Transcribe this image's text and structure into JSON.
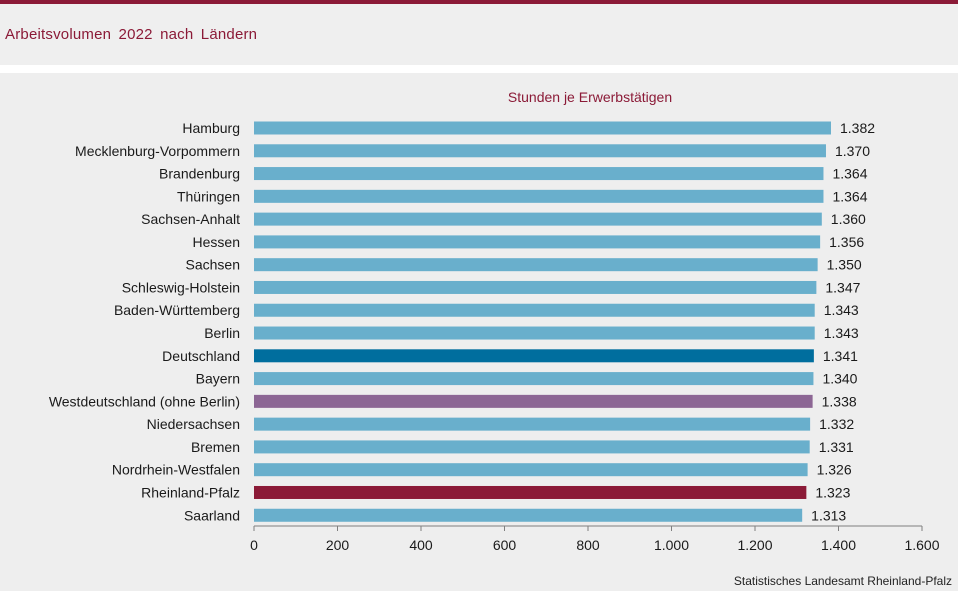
{
  "header": {
    "title": "Arbeitsvolumen  2022  nach Ländern"
  },
  "footer": {
    "source": "Statistisches Landesamt Rheinland-Pfalz"
  },
  "colors": {
    "brand": "#8b1a37",
    "bar_default": "#69afcc",
    "bar_germany": "#006e9e",
    "bar_west": "#8c6694",
    "bar_rlp": "#8b1a37",
    "text": "#1a1a1a"
  },
  "chart_data": {
    "type": "bar",
    "orientation": "horizontal",
    "title": "Stunden je Erwerbstätigen",
    "categories": [
      "Hamburg",
      "Mecklenburg-Vorpommern",
      "Brandenburg",
      "Thüringen",
      "Sachsen-Anhalt",
      "Hessen",
      "Sachsen",
      "Schleswig-Holstein",
      "Baden-Württemberg",
      "Berlin",
      "Deutschland",
      "Bayern",
      "Westdeutschland (ohne Berlin)",
      "Niedersachsen",
      "Bremen",
      "Nordrhein-Westfalen",
      "Rheinland-Pfalz",
      "Saarland"
    ],
    "values": [
      1382,
      1370,
      1364,
      1364,
      1360,
      1356,
      1350,
      1347,
      1343,
      1343,
      1341,
      1340,
      1338,
      1332,
      1331,
      1326,
      1323,
      1313
    ],
    "value_labels": [
      "1.382",
      "1.370",
      "1.364",
      "1.364",
      "1.360",
      "1.356",
      "1.350",
      "1.347",
      "1.343",
      "1.343",
      "1.341",
      "1.340",
      "1.338",
      "1.332",
      "1.331",
      "1.326",
      "1.323",
      "1.313"
    ],
    "highlight": {
      "Deutschland": "#006e9e",
      "Westdeutschland (ohne Berlin)": "#8c6694",
      "Rheinland-Pfalz": "#8b1a37"
    },
    "xlim": [
      0,
      1600
    ],
    "xticks": [
      0,
      200,
      400,
      600,
      800,
      1000,
      1200,
      1400,
      1600
    ],
    "xtick_labels": [
      "0",
      "200",
      "400",
      "600",
      "800",
      "1.000",
      "1.200",
      "1.400",
      "1.600"
    ],
    "xlabel": "",
    "ylabel": "",
    "grid": false,
    "legend": "none"
  }
}
